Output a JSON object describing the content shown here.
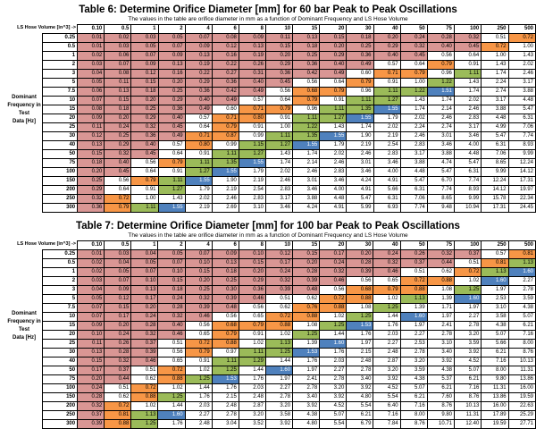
{
  "palette": {
    "salmon": "#D99694",
    "orange": "#F79646",
    "green": "#9BBB59",
    "blue": "#4F81BD",
    "white": "#FFFFFF",
    "border": "#000000"
  },
  "color_bands": [
    {
      "up_to": 0.5,
      "class": "c-salmon"
    },
    {
      "up_to": 0.66,
      "class": "c-white"
    },
    {
      "up_to": 0.9,
      "class": "c-orange"
    },
    {
      "up_to": 1.1,
      "class": "c-white"
    },
    {
      "up_to": 1.38,
      "class": "c-green"
    },
    {
      "up_to": 1.5,
      "class": "c-white"
    },
    {
      "up_to": 1.615,
      "class": "c-blue"
    },
    {
      "up_to": 99999,
      "class": "c-white"
    }
  ],
  "tables": [
    {
      "title": "Table 6: Determine Orifice Diameter [mm] for 60 bar Peak to Peak Oscillations",
      "subtitle": "The values in the table are orifice diameter in mm as a function of Dominant Frequency and LS Hose Volume",
      "corner_label": "LS Hose Volume [in^3] ->",
      "freq_label_lines": [
        "Dominant",
        "Frequency in Test",
        "Data [Hz]"
      ],
      "columns": [
        "0.10",
        "0.5",
        "1",
        "2",
        "4",
        "6",
        "8",
        "10",
        "15",
        "20",
        "30",
        "40",
        "50",
        "75",
        "100",
        "250",
        "500"
      ],
      "rows": [
        {
          "label": "0.25",
          "values": [
            "0.01",
            "0.02",
            "0.03",
            "0.05",
            "0.07",
            "0.08",
            "0.09",
            "0.11",
            "0.13",
            "0.15",
            "0.18",
            "0.20",
            "0.24",
            "0.28",
            "0.32",
            "0.51",
            "0.72"
          ]
        },
        {
          "label": "0.5",
          "values": [
            "0.01",
            "0.03",
            "0.05",
            "0.07",
            "0.09",
            "0.12",
            "0.13",
            "0.15",
            "0.18",
            "0.20",
            "0.25",
            "0.29",
            "0.32",
            "0.40",
            "0.45",
            "0.72",
            "1.00"
          ]
        },
        {
          "label": "1",
          "values": [
            "0.02",
            "0.06",
            "0.07",
            "0.09",
            "0.13",
            "0.16",
            "0.19",
            "0.20",
            "0.25",
            "0.29",
            "0.36",
            "0.40",
            "0.45",
            "0.56",
            "0.64",
            "1.00",
            "1.43"
          ]
        },
        {
          "label": "2",
          "values": [
            "0.03",
            "0.07",
            "0.09",
            "0.13",
            "0.19",
            "0.22",
            "0.26",
            "0.29",
            "0.36",
            "0.40",
            "0.49",
            "0.57",
            "0.64",
            "0.79",
            "0.91",
            "1.43",
            "2.02"
          ]
        },
        {
          "label": "3",
          "values": [
            "0.04",
            "0.08",
            "0.12",
            "0.16",
            "0.22",
            "0.27",
            "0.31",
            "0.36",
            "0.42",
            "0.49",
            "0.60",
            "0.71",
            "0.79",
            "0.96",
            "1.11",
            "1.74",
            "2.46"
          ]
        },
        {
          "label": "5",
          "values": [
            "0.05",
            "0.11",
            "0.15",
            "0.20",
            "0.29",
            "0.36",
            "0.40",
            "0.45",
            "0.56",
            "0.64",
            "0.79",
            "0.91",
            "1.00",
            "1.22",
            "1.43",
            "2.24",
            "3.17"
          ]
        },
        {
          "label": "7.5",
          "values": [
            "0.06",
            "0.13",
            "0.18",
            "0.25",
            "0.36",
            "0.42",
            "0.49",
            "0.56",
            "0.68",
            "0.79",
            "0.96",
            "1.11",
            "1.22",
            "1.51",
            "1.74",
            "2.74",
            "3.88"
          ]
        },
        {
          "label": "10",
          "values": [
            "0.07",
            "0.15",
            "0.20",
            "0.29",
            "0.40",
            "0.49",
            "0.57",
            "0.64",
            "0.79",
            "0.91",
            "1.11",
            "1.27",
            "1.43",
            "1.74",
            "2.02",
            "3.17",
            "4.48"
          ]
        },
        {
          "label": "15",
          "values": [
            "0.08",
            "0.18",
            "0.25",
            "0.36",
            "0.49",
            "0.60",
            "0.71",
            "0.79",
            "0.96",
            "1.11",
            "1.35",
            "1.55",
            "1.74",
            "2.14",
            "2.46",
            "3.88",
            "5.47"
          ]
        },
        {
          "label": "20",
          "values": [
            "0.09",
            "0.20",
            "0.29",
            "0.40",
            "0.57",
            "0.71",
            "0.80",
            "0.91",
            "1.11",
            "1.27",
            "1.55",
            "1.79",
            "2.02",
            "2.46",
            "2.83",
            "4.48",
            "6.31"
          ]
        },
        {
          "label": "25",
          "values": [
            "0.11",
            "0.24",
            "0.32",
            "0.45",
            "0.64",
            "0.79",
            "0.91",
            "1.00",
            "1.22",
            "1.43",
            "1.74",
            "2.02",
            "2.24",
            "2.74",
            "3.17",
            "4.99",
            "7.06"
          ]
        },
        {
          "label": "30",
          "values": [
            "0.12",
            "0.25",
            "0.36",
            "0.49",
            "0.71",
            "0.87",
            "0.99",
            "1.11",
            "1.35",
            "1.55",
            "1.90",
            "2.19",
            "2.46",
            "3.01",
            "3.46",
            "5.47",
            "7.74"
          ]
        },
        {
          "label": "40",
          "values": [
            "0.13",
            "0.29",
            "0.40",
            "0.57",
            "0.80",
            "0.99",
            "1.15",
            "1.27",
            "1.55",
            "1.79",
            "2.19",
            "2.54",
            "2.83",
            "3.46",
            "4.00",
            "6.31",
            "8.93"
          ]
        },
        {
          "label": "50",
          "values": [
            "0.15",
            "0.32",
            "0.45",
            "0.64",
            "0.91",
            "1.11",
            "1.27",
            "1.43",
            "1.74",
            "2.02",
            "2.46",
            "2.83",
            "3.17",
            "3.88",
            "4.48",
            "7.06",
            "9.99"
          ]
        },
        {
          "label": "75",
          "values": [
            "0.18",
            "0.40",
            "0.56",
            "0.79",
            "1.11",
            "1.35",
            "1.55",
            "1.74",
            "2.14",
            "2.46",
            "3.01",
            "3.46",
            "3.88",
            "4.74",
            "5.47",
            "8.65",
            "12.24"
          ]
        },
        {
          "label": "100",
          "values": [
            "0.20",
            "0.45",
            "0.64",
            "0.91",
            "1.27",
            "1.55",
            "1.79",
            "2.02",
            "2.46",
            "2.83",
            "3.46",
            "4.00",
            "4.48",
            "5.47",
            "6.31",
            "9.99",
            "14.12"
          ]
        },
        {
          "label": "150",
          "values": [
            "0.25",
            "0.56",
            "0.79",
            "1.11",
            "1.55",
            "1.90",
            "2.19",
            "2.46",
            "3.01",
            "3.46",
            "4.24",
            "4.91",
            "5.47",
            "6.70",
            "7.74",
            "12.24",
            "17.31"
          ]
        },
        {
          "label": "200",
          "values": [
            "0.29",
            "0.64",
            "0.91",
            "1.27",
            "1.79",
            "2.19",
            "2.54",
            "2.83",
            "3.46",
            "4.00",
            "4.91",
            "5.66",
            "6.31",
            "7.74",
            "8.93",
            "14.12",
            "19.97"
          ]
        },
        {
          "label": "250",
          "values": [
            "0.32",
            "0.72",
            "1.00",
            "1.43",
            "2.02",
            "2.46",
            "2.83",
            "3.17",
            "3.88",
            "4.48",
            "5.47",
            "6.31",
            "7.06",
            "8.65",
            "9.99",
            "15.78",
            "22.34"
          ]
        },
        {
          "label": "300",
          "values": [
            "0.36",
            "0.79",
            "1.11",
            "1.55",
            "2.19",
            "2.69",
            "3.10",
            "3.46",
            "4.24",
            "4.91",
            "5.99",
            "6.93",
            "7.74",
            "9.48",
            "10.94",
            "17.31",
            "24.45"
          ]
        }
      ]
    },
    {
      "title": "Table 7: Determine Orifice Diameter [mm] for 100 bar Peak to Peak Oscillations",
      "subtitle": "The values in the table are orifice diameter in mm as a function of Dominant Frequency and LS Hose Volume",
      "corner_label": "LS Hose Volume [in^3] ->",
      "freq_label_lines": [
        "Dominant",
        "Frequency in Test",
        "Data [Hz]"
      ],
      "columns": [
        "0.10",
        "0.5",
        "1",
        "2",
        "4",
        "6",
        "8",
        "10",
        "15",
        "20",
        "30",
        "40",
        "50",
        "75",
        "100",
        "250",
        "500"
      ],
      "rows": [
        {
          "label": "0.25",
          "values": [
            "0.01",
            "0.03",
            "0.04",
            "0.05",
            "0.07",
            "0.09",
            "0.10",
            "0.12",
            "0.15",
            "0.17",
            "0.20",
            "0.24",
            "0.26",
            "0.32",
            "0.37",
            "0.57",
            "0.81"
          ]
        },
        {
          "label": "0.5",
          "values": [
            "0.02",
            "0.04",
            "0.05",
            "0.07",
            "0.10",
            "0.13",
            "0.15",
            "0.17",
            "0.20",
            "0.24",
            "0.28",
            "0.32",
            "0.37",
            "0.44",
            "0.51",
            "0.81",
            "1.13"
          ]
        },
        {
          "label": "1",
          "values": [
            "0.02",
            "0.05",
            "0.07",
            "0.10",
            "0.15",
            "0.18",
            "0.20",
            "0.24",
            "0.28",
            "0.32",
            "0.39",
            "0.46",
            "0.51",
            "0.62",
            "0.72",
            "1.13",
            "1.60"
          ]
        },
        {
          "label": "2",
          "values": [
            "0.03",
            "0.07",
            "0.10",
            "0.15",
            "0.20",
            "0.25",
            "0.29",
            "0.32",
            "0.39",
            "0.46",
            "0.56",
            "0.65",
            "0.72",
            "0.88",
            "1.02",
            "1.60",
            "2.27"
          ]
        },
        {
          "label": "3",
          "values": [
            "0.04",
            "0.09",
            "0.13",
            "0.18",
            "0.25",
            "0.30",
            "0.36",
            "0.39",
            "0.48",
            "0.56",
            "0.68",
            "0.79",
            "0.88",
            "1.08",
            "1.25",
            "1.97",
            "2.78"
          ]
        },
        {
          "label": "5",
          "values": [
            "0.05",
            "0.12",
            "0.17",
            "0.24",
            "0.32",
            "0.39",
            "0.46",
            "0.51",
            "0.62",
            "0.72",
            "0.88",
            "1.02",
            "1.13",
            "1.39",
            "1.60",
            "2.53",
            "3.59"
          ]
        },
        {
          "label": "7.5",
          "values": [
            "0.07",
            "0.15",
            "0.20",
            "0.28",
            "0.39",
            "0.48",
            "0.56",
            "0.62",
            "0.76",
            "0.88",
            "1.08",
            "1.25",
            "1.39",
            "1.71",
            "1.97",
            "3.10",
            "4.38"
          ]
        },
        {
          "label": "10",
          "values": [
            "0.07",
            "0.17",
            "0.24",
            "0.32",
            "0.46",
            "0.56",
            "0.65",
            "0.72",
            "0.88",
            "1.02",
            "1.25",
            "1.44",
            "1.60",
            "1.97",
            "2.27",
            "3.58",
            "5.07"
          ]
        },
        {
          "label": "15",
          "values": [
            "0.09",
            "0.20",
            "0.28",
            "0.40",
            "0.56",
            "0.68",
            "0.79",
            "0.88",
            "1.08",
            "1.25",
            "1.53",
            "1.76",
            "1.97",
            "2.41",
            "2.78",
            "4.38",
            "6.21"
          ]
        },
        {
          "label": "20",
          "values": [
            "0.10",
            "0.24",
            "0.32",
            "0.46",
            "0.65",
            "0.79",
            "0.91",
            "1.02",
            "1.25",
            "1.44",
            "1.76",
            "2.03",
            "2.27",
            "2.78",
            "3.20",
            "5.07",
            "7.16"
          ]
        },
        {
          "label": "25",
          "values": [
            "0.11",
            "0.26",
            "0.37",
            "0.51",
            "0.72",
            "0.88",
            "1.02",
            "1.13",
            "1.39",
            "1.60",
            "1.97",
            "2.27",
            "2.53",
            "3.10",
            "3.59",
            "5.66",
            "8.00"
          ]
        },
        {
          "label": "30",
          "values": [
            "0.13",
            "0.28",
            "0.39",
            "0.56",
            "0.79",
            "0.97",
            "1.11",
            "1.25",
            "1.53",
            "1.76",
            "2.15",
            "2.48",
            "2.78",
            "3.40",
            "3.92",
            "6.21",
            "8.76"
          ]
        },
        {
          "label": "40",
          "values": [
            "0.15",
            "0.32",
            "0.46",
            "0.65",
            "0.91",
            "1.11",
            "1.29",
            "1.44",
            "1.76",
            "2.03",
            "2.48",
            "2.87",
            "3.20",
            "3.92",
            "4.52",
            "7.16",
            "10.13"
          ]
        },
        {
          "label": "50",
          "values": [
            "0.17",
            "0.37",
            "0.51",
            "0.72",
            "1.02",
            "1.25",
            "1.44",
            "1.60",
            "1.97",
            "2.27",
            "2.78",
            "3.20",
            "3.59",
            "4.38",
            "5.07",
            "8.00",
            "11.31"
          ]
        },
        {
          "label": "75",
          "values": [
            "0.20",
            "0.44",
            "0.62",
            "0.88",
            "1.25",
            "1.53",
            "1.76",
            "1.97",
            "2.41",
            "2.78",
            "3.40",
            "3.92",
            "4.38",
            "5.37",
            "6.21",
            "9.80",
            "13.86"
          ]
        },
        {
          "label": "100",
          "values": [
            "0.24",
            "0.51",
            "0.72",
            "1.02",
            "1.44",
            "1.76",
            "2.03",
            "2.27",
            "2.78",
            "3.20",
            "3.92",
            "4.52",
            "5.07",
            "6.21",
            "7.16",
            "11.31",
            "16.00"
          ]
        },
        {
          "label": "150",
          "values": [
            "0.28",
            "0.62",
            "0.88",
            "1.25",
            "1.76",
            "2.15",
            "2.48",
            "2.78",
            "3.40",
            "3.92",
            "4.80",
            "5.54",
            "6.21",
            "7.60",
            "8.76",
            "13.86",
            "19.59"
          ]
        },
        {
          "label": "200",
          "values": [
            "0.32",
            "0.72",
            "1.02",
            "1.44",
            "2.03",
            "2.48",
            "2.87",
            "3.20",
            "3.92",
            "4.52",
            "5.54",
            "6.40",
            "7.16",
            "8.76",
            "10.13",
            "16.00",
            "22.63"
          ]
        },
        {
          "label": "250",
          "values": [
            "0.37",
            "0.81",
            "1.13",
            "1.60",
            "2.27",
            "2.78",
            "3.20",
            "3.58",
            "4.38",
            "5.07",
            "6.21",
            "7.16",
            "8.00",
            "9.80",
            "11.31",
            "17.89",
            "25.29"
          ]
        },
        {
          "label": "300",
          "values": [
            "0.39",
            "0.88",
            "1.25",
            "1.76",
            "2.48",
            "3.04",
            "3.52",
            "3.92",
            "4.80",
            "5.54",
            "6.79",
            "7.84",
            "8.76",
            "10.71",
            "12.40",
            "19.59",
            "27.71"
          ]
        }
      ]
    }
  ]
}
